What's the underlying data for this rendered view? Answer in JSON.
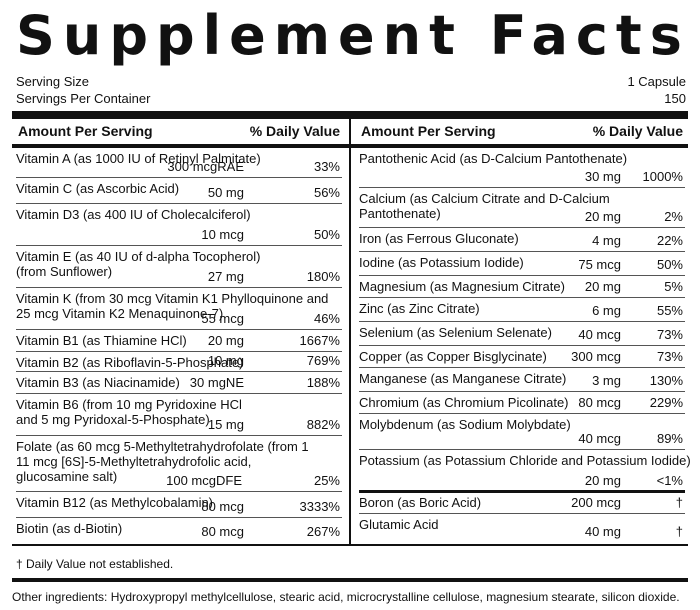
{
  "title": "Supplement Facts",
  "serving_size": {
    "label": "Serving Size",
    "value": "1 Capsule"
  },
  "servings_per_container": {
    "label": "Servings Per Container",
    "value": "150"
  },
  "header": {
    "amount": "Amount Per Serving",
    "dv": "% Daily Value"
  },
  "left_rows": [
    {
      "name": "Vitamin A (as 1000 IU of Retinyl Palmitate)",
      "amount": "300 mcgRAE",
      "dv": "33%"
    },
    {
      "name": "Vitamin C (as Ascorbic Acid)",
      "amount": "50 mg",
      "dv": "56%"
    },
    {
      "name": "Vitamin D3 (as 400 IU of Cholecalciferol)",
      "amount": "10 mcg",
      "dv": "50%"
    },
    {
      "name": "Vitamin E (as 40 IU of d-alpha Tocopherol)\n(from Sunflower)",
      "amount": "27 mg",
      "dv": "180%"
    },
    {
      "name": "Vitamin K (from 30 mcg Vitamin K1 Phylloquinone and\n25 mcg Vitamin K2 Menaquinone-7)",
      "amount": "55 mcg",
      "dv": "46%"
    },
    {
      "name": "Vitamin B1 (as Thiamine HCl)",
      "amount": "20 mg",
      "dv": "1667%"
    },
    {
      "name": "Vitamin B2 (as Riboflavin-5-Phosphate)",
      "amount": "10 mg",
      "dv": "769%"
    },
    {
      "name": "Vitamin B3 (as Niacinamide)",
      "amount": "30 mgNE",
      "dv": "188%"
    },
    {
      "name": "Vitamin B6 (from 10 mg Pyridoxine HCl\nand 5 mg Pyridoxal-5-Phosphate)",
      "amount": "15 mg",
      "dv": "882%"
    },
    {
      "name": "Folate (as 60 mcg 5-Methyltetrahydrofolate (from 1\n11 mcg [6S]-5-Methyltetrahydrofolic acid,\nglucosamine salt)",
      "amount": "100 mcgDFE",
      "dv": "25%"
    },
    {
      "name": "Vitamin B12 (as Methylcobalamin)",
      "amount": "80 mcg",
      "dv": "3333%"
    },
    {
      "name": "Biotin (as d-Biotin)",
      "amount": "80 mcg",
      "dv": "267%"
    }
  ],
  "right_rows": [
    {
      "name": "Pantothenic Acid (as D-Calcium Pantothenate)",
      "amount": "30 mg",
      "dv": "1000%"
    },
    {
      "name": "Calcium (as Calcium Citrate and D-Calcium\nPantothenate)",
      "amount": "20 mg",
      "dv": "2%"
    },
    {
      "name": "Iron (as Ferrous Gluconate)",
      "amount": "4 mg",
      "dv": "22%"
    },
    {
      "name": "Iodine (as Potassium Iodide)",
      "amount": "75 mcg",
      "dv": "50%"
    },
    {
      "name": "Magnesium (as Magnesium Citrate)",
      "amount": "20 mg",
      "dv": "5%"
    },
    {
      "name": "Zinc (as Zinc Citrate)",
      "amount": "6 mg",
      "dv": "55%"
    },
    {
      "name": "Selenium (as Selenium Selenate)",
      "amount": "40 mcg",
      "dv": "73%"
    },
    {
      "name": "Copper (as Copper Bisglycinate)",
      "amount": "300 mcg",
      "dv": "73%"
    },
    {
      "name": "Manganese (as Manganese Citrate)",
      "amount": "3 mg",
      "dv": "130%"
    },
    {
      "name": "Chromium (as Chromium Picolinate)",
      "amount": "80 mcg",
      "dv": "229%"
    },
    {
      "name": "Molybdenum (as Sodium Molybdate)",
      "amount": "40 mcg",
      "dv": "89%"
    },
    {
      "name": "Potassium (as Potassium Chloride and Potassium Iodide)",
      "amount": "20 mg",
      "dv": "<1%"
    },
    {
      "name": "Boron (as Boric Acid)",
      "amount": "200 mcg",
      "dv": "†"
    },
    {
      "name": "Glutamic Acid",
      "amount": "40 mg",
      "dv": "†"
    }
  ],
  "footnote": "† Daily Value not established.",
  "other_ingredients": "Other ingredients: Hydroxypropyl methylcellulose, stearic acid, microcrystalline cellulose, magnesium stearate, silicon dioxide."
}
